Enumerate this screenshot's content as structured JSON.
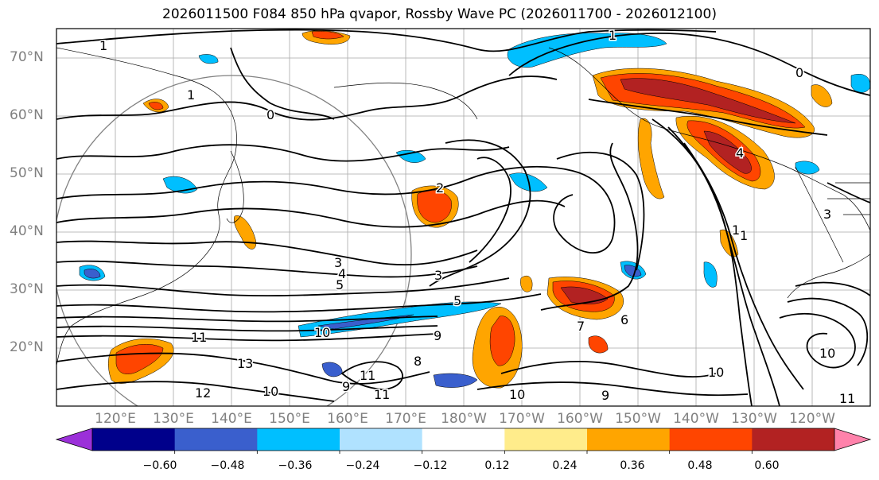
{
  "title": "2026011500 F084 850 hPa qvapor, Rossby Wave PC (2026011700 - 2026012100)",
  "map": {
    "projection": "PlateCarree",
    "central_longitude": "Pacific",
    "lon_range": [
      "110°E",
      "110°W"
    ],
    "lat_range": [
      "10°N",
      "75°N"
    ],
    "lat_ticks": [
      "70°N",
      "60°N",
      "50°N",
      "40°N",
      "30°N",
      "20°N"
    ],
    "lon_ticks": [
      "120°E",
      "130°E",
      "140°E",
      "150°E",
      "160°E",
      "170°E",
      "180°W",
      "170°W",
      "160°W",
      "150°W",
      "140°W",
      "130°W",
      "120°W"
    ],
    "contour_labels": [
      "1",
      "1",
      "1",
      "0",
      "0",
      "2",
      "3",
      "3",
      "4",
      "5",
      "5",
      "6",
      "7",
      "8",
      "9",
      "9",
      "9",
      "10",
      "10",
      "10",
      "10",
      "10",
      "11",
      "11",
      "11",
      "11",
      "12",
      "13",
      "4",
      "3",
      "1",
      "1"
    ]
  },
  "colorbar": {
    "colors": [
      "#9b30d9",
      "#00008b",
      "#3a5fcd",
      "#00bfff",
      "#b0e2ff",
      "#ffffff",
      "#ffec8b",
      "#ffa500",
      "#ff4500",
      "#b22222",
      "#ff82ab"
    ],
    "ticks": [
      "−0.60",
      "−0.48",
      "−0.36",
      "−0.24",
      "−0.12",
      "0.12",
      "0.24",
      "0.36",
      "0.48",
      "0.60"
    ],
    "extend": "both"
  }
}
